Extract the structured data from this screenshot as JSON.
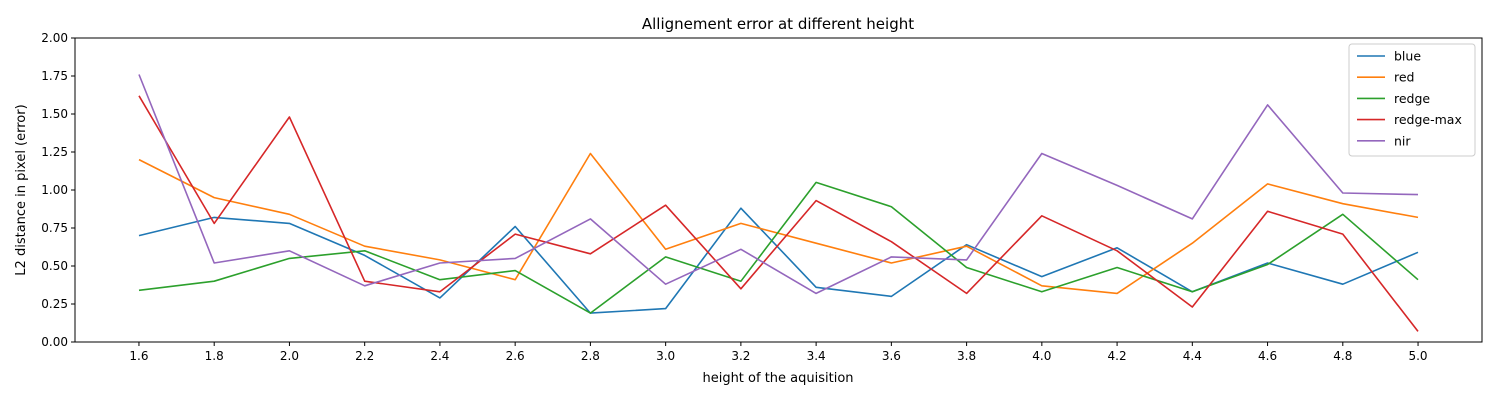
{
  "chart_data": {
    "type": "line",
    "title": "Allignement error at different height",
    "xlabel": "height of the aquisition",
    "ylabel": "L2 distance in pixel (error)",
    "x": [
      1.6,
      1.8,
      2.0,
      2.2,
      2.4,
      2.6,
      2.8,
      3.0,
      3.2,
      3.4,
      3.6,
      3.8,
      4.0,
      4.2,
      4.4,
      4.6,
      4.8,
      5.0
    ],
    "x_tick_labels": [
      "1.6",
      "1.8",
      "2.0",
      "2.2",
      "2.4",
      "2.6",
      "2.8",
      "3.0",
      "3.2",
      "3.4",
      "3.6",
      "3.8",
      "4.0",
      "4.2",
      "4.4",
      "4.6",
      "4.8",
      "5.0"
    ],
    "xlim": [
      1.43,
      5.17
    ],
    "ylim": [
      0.0,
      2.0
    ],
    "y_ticks": [
      0.0,
      0.25,
      0.5,
      0.75,
      1.0,
      1.25,
      1.5,
      1.75,
      2.0
    ],
    "y_tick_labels": [
      "0.00",
      "0.25",
      "0.50",
      "0.75",
      "1.00",
      "1.25",
      "1.50",
      "1.75",
      "2.00"
    ],
    "grid": false,
    "legend_position": "top-right",
    "series": [
      {
        "name": "blue",
        "color": "#1f77b4",
        "values": [
          0.7,
          0.82,
          0.78,
          0.57,
          0.29,
          0.76,
          0.19,
          0.22,
          0.88,
          0.36,
          0.3,
          0.64,
          0.43,
          0.62,
          0.33,
          0.52,
          0.38,
          0.59
        ]
      },
      {
        "name": "red",
        "color": "#ff7f0e",
        "values": [
          1.2,
          0.95,
          0.84,
          0.63,
          0.54,
          0.41,
          1.24,
          0.61,
          0.78,
          0.65,
          0.52,
          0.63,
          0.37,
          0.32,
          0.65,
          1.04,
          0.91,
          0.82
        ]
      },
      {
        "name": "redge",
        "color": "#2ca02c",
        "values": [
          0.34,
          0.4,
          0.55,
          0.6,
          0.41,
          0.47,
          0.19,
          0.56,
          0.4,
          1.05,
          0.89,
          0.49,
          0.33,
          0.49,
          0.33,
          0.51,
          0.84,
          0.41
        ]
      },
      {
        "name": "redge-max",
        "color": "#d62728",
        "values": [
          1.62,
          0.78,
          1.48,
          0.4,
          0.33,
          0.71,
          0.58,
          0.9,
          0.35,
          0.93,
          0.66,
          0.32,
          0.83,
          0.6,
          0.23,
          0.86,
          0.71,
          0.07
        ]
      },
      {
        "name": "nir",
        "color": "#9467bd",
        "values": [
          1.76,
          0.52,
          0.6,
          0.37,
          0.52,
          0.55,
          0.81,
          0.38,
          0.61,
          0.32,
          0.56,
          0.54,
          1.24,
          1.03,
          0.81,
          1.56,
          0.98,
          0.97
        ]
      }
    ]
  }
}
